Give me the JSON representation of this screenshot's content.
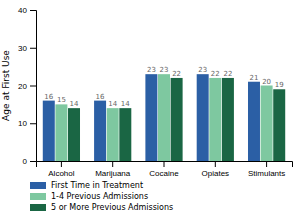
{
  "chart_data": {
    "type": "bar",
    "ylabel": "Age at First Use",
    "categories": [
      "Alcohol",
      "Marijuana",
      "Cocaine",
      "Opiates",
      "Stimulants"
    ],
    "series": [
      {
        "name": "First Time in Treatment",
        "color": "#2b5fa5",
        "values": [
          16,
          16,
          23,
          23,
          21
        ]
      },
      {
        "name": "1-4 Previous Admissions",
        "color": "#7ec8a0",
        "values": [
          15,
          14,
          23,
          22,
          20
        ]
      },
      {
        "name": "5 or More Previous Admissions",
        "color": "#1a6644",
        "values": [
          14,
          14,
          22,
          22,
          19
        ]
      }
    ],
    "ylim": [
      0,
      40
    ],
    "yticks": [
      0,
      10,
      20,
      30,
      40
    ],
    "grid": false,
    "legend": "bottom",
    "data_labels": true
  }
}
